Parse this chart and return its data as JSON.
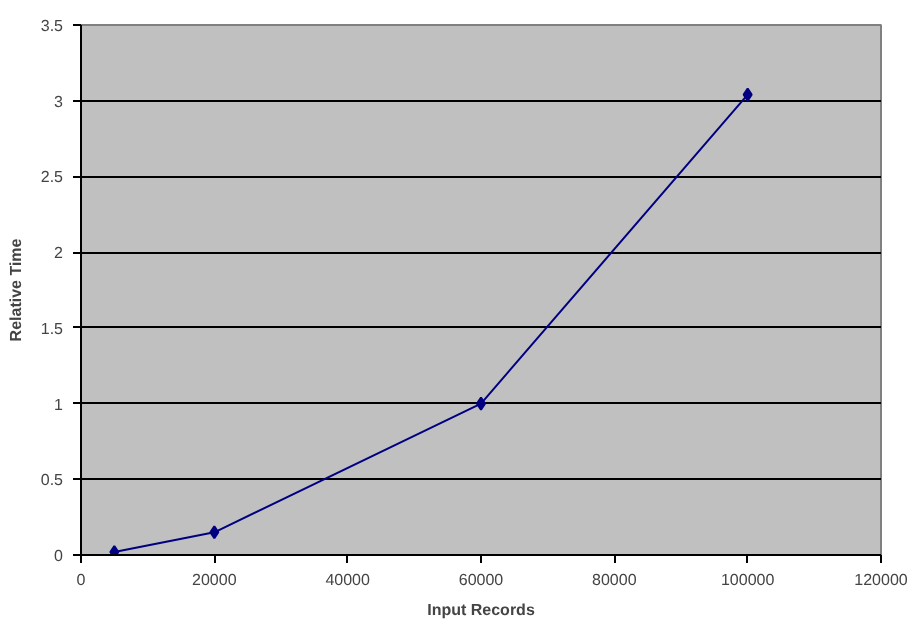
{
  "chart_data": {
    "type": "line",
    "xlabel": "Input Records",
    "ylabel": "Relative Time",
    "x": [
      5000,
      20000,
      60000,
      100000
    ],
    "series": [
      {
        "color": "#000080",
        "values": [
          0.02,
          0.15,
          1.0,
          3.04
        ]
      }
    ],
    "xlim": [
      0,
      120000
    ],
    "xticks": [
      0,
      20000,
      40000,
      60000,
      80000,
      100000,
      120000
    ],
    "ylim": [
      0,
      3.5
    ],
    "yticks": [
      0,
      0.5,
      1,
      1.5,
      2,
      2.5,
      3,
      3.5
    ],
    "grid": "y",
    "marker": "diamond",
    "line_style": "solid"
  }
}
